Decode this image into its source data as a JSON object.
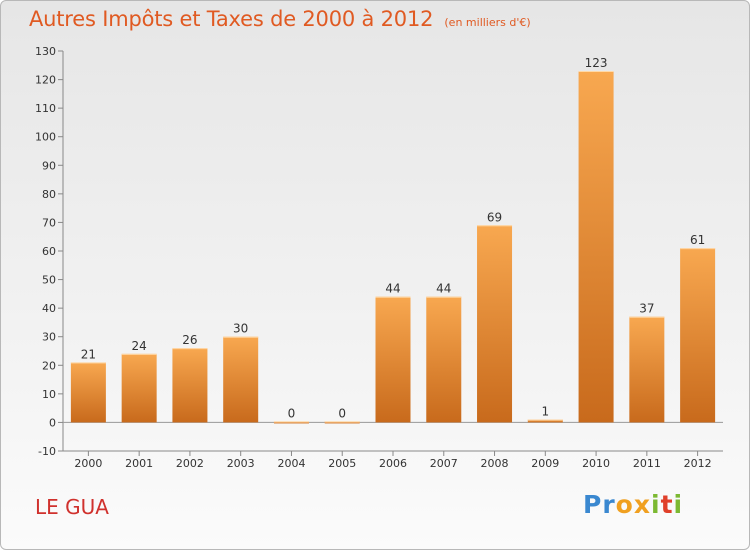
{
  "header": {
    "title": "Autres Impôts et Taxes de 2000 à 2012",
    "unit": "(en milliers d'€)"
  },
  "footer": {
    "place_name": "LE GUA",
    "logo_letters": [
      {
        "char": "P",
        "color": "#3a88d0"
      },
      {
        "char": "r",
        "color": "#3a88d0"
      },
      {
        "char": "o",
        "color": "#f0a020"
      },
      {
        "char": "x",
        "color": "#f0a020"
      },
      {
        "char": "i",
        "color": "#7cb932"
      },
      {
        "char": "t",
        "color": "#e0402a"
      },
      {
        "char": "i",
        "color": "#7cb932"
      }
    ]
  },
  "colors": {
    "bar_light": "#f8a850",
    "bar_dark": "#c86a1c",
    "title": "#e05a22",
    "place": "#d0312d"
  },
  "chart_data": {
    "type": "bar",
    "title": "Autres Impôts et Taxes de 2000 à 2012",
    "subtitle": "(en milliers d'€)",
    "xlabel": "",
    "ylabel": "",
    "categories": [
      "2000",
      "2001",
      "2002",
      "2003",
      "2004",
      "2005",
      "2006",
      "2007",
      "2008",
      "2009",
      "2010",
      "2011",
      "2012"
    ],
    "values": [
      21,
      24,
      26,
      30,
      0,
      0,
      44,
      44,
      69,
      1,
      123,
      37,
      61
    ],
    "ylim": [
      -10,
      130
    ],
    "yticks": [
      -10,
      0,
      10,
      20,
      30,
      40,
      50,
      60,
      70,
      80,
      90,
      100,
      110,
      120,
      130
    ],
    "grid": false,
    "legend": "none"
  }
}
